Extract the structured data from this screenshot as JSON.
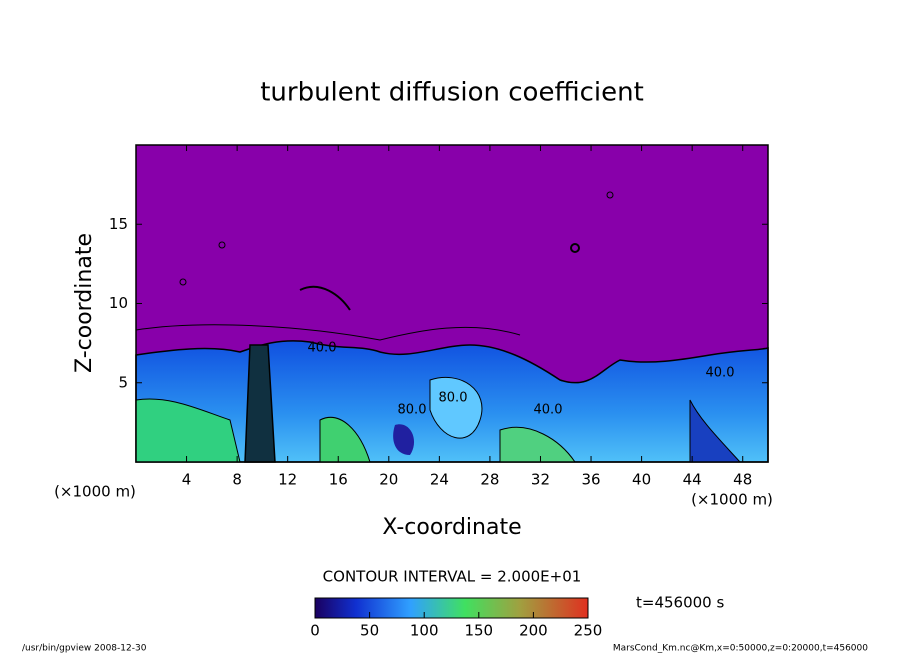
{
  "chart_data": {
    "type": "contour",
    "title": "turbulent diffusion coefficient",
    "xlabel": "X-coordinate",
    "ylabel": "Z-coordinate",
    "x_unit": "(×1000 m)",
    "y_unit": "(×1000 m)",
    "xlim": [
      0,
      50
    ],
    "ylim": [
      0,
      20
    ],
    "xticks": [
      4,
      8,
      12,
      16,
      20,
      24,
      28,
      32,
      36,
      40,
      44,
      48
    ],
    "yticks": [
      5,
      10,
      15
    ],
    "contour_interval": "CONTOUR INTERVAL = 2.000E+01",
    "clim": [
      0,
      250
    ],
    "cticks": [
      0,
      50,
      100,
      150,
      200,
      250
    ],
    "contour_labels": [
      {
        "value": 40,
        "label": "40.0"
      },
      {
        "value": 80,
        "label": "80.0"
      },
      {
        "value": 80,
        "label": "80.0"
      },
      {
        "value": 40,
        "label": "40.0"
      },
      {
        "value": 40,
        "label": "40.0"
      }
    ],
    "time_label": "t=456000 s",
    "footer_left": "/usr/bin/gpview   2008-12-30",
    "footer_right": "MarsCond_Km.nc@Km,x=0:50000,z=0:20000,t=456000"
  }
}
